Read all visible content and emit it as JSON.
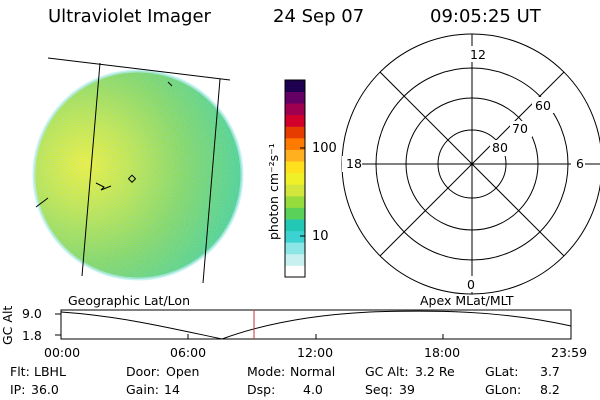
{
  "header": {
    "title": "Ultraviolet Imager",
    "date": "24 Sep 07",
    "time": "09:05:25 UT"
  },
  "colorbar": {
    "label": "photon cm⁻²s⁻¹",
    "scale": "log",
    "ticks": [
      "100",
      "10"
    ],
    "tick_values": [
      100,
      10
    ],
    "colors": [
      "#ffffff",
      "#c8f0f0",
      "#8ce6e6",
      "#3cd2d2",
      "#22c8b4",
      "#5ad25a",
      "#96dc3c",
      "#d2e63c",
      "#f0f028",
      "#ffe01e",
      "#ffb01e",
      "#ff7a00",
      "#e63c00",
      "#d2002a",
      "#a00050",
      "#640064",
      "#1e0050"
    ]
  },
  "polar_grid": {
    "mlt_labels": [
      "12",
      "18",
      "6",
      "0"
    ],
    "mlat_labels": [
      "60",
      "70",
      "80"
    ]
  },
  "panel_labels": {
    "left": "Geographic Lat/Lon",
    "right": "Apex MLat/MLT"
  },
  "altitude_plot": {
    "ylabel": "GC Alt",
    "y_ticks": [
      "9.0",
      "1.8"
    ],
    "x_ticks": [
      "00:00",
      "06:00",
      "12:00",
      "18:00",
      "23:59"
    ],
    "current_time_marker": "09:05",
    "marker_color": "#c83232"
  },
  "info": {
    "row1": [
      {
        "label": "Flt:",
        "value": "LBHL"
      },
      {
        "label": "Door:",
        "value": "Open"
      },
      {
        "label": "Mode:",
        "value": "Normal"
      },
      {
        "label": "GC Alt:",
        "value": "3.2 Re"
      },
      {
        "label": "GLat:",
        "value": "3.7"
      }
    ],
    "row2": [
      {
        "label": "IP:",
        "value": "36.0"
      },
      {
        "label": "Gain:",
        "value": "14"
      },
      {
        "label": "Dsp:",
        "value": "4.0"
      },
      {
        "label": "Seq:",
        "value": "39"
      },
      {
        "label": "GLon:",
        "value": "8.2"
      }
    ]
  }
}
